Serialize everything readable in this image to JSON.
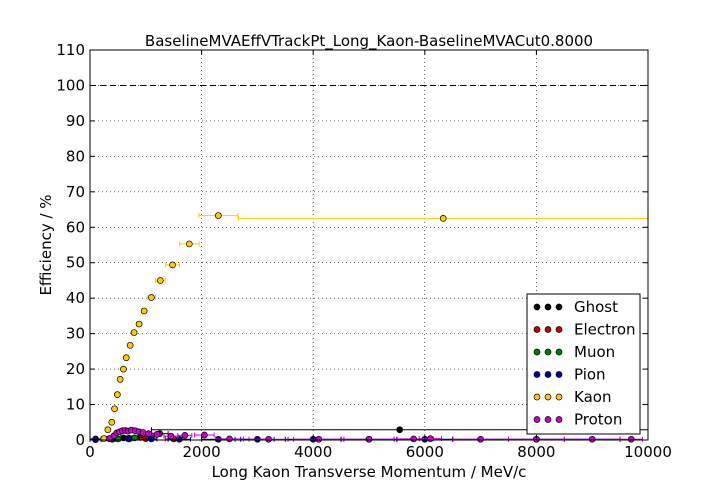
{
  "chart_data": {
    "type": "scatter",
    "title": "BaselineMVAEffVTrackPt_Long_Kaon-BaselineMVACut0.8000",
    "xlabel": "Long Kaon Transverse Momentum / MeV/c",
    "ylabel": "Efficiency / %",
    "xlim": [
      0,
      10000
    ],
    "ylim": [
      0,
      110
    ],
    "x_ticks": [
      "0",
      "2000",
      "4000",
      "6000",
      "8000",
      "10000"
    ],
    "y_ticks": [
      "0",
      "10",
      "20",
      "30",
      "40",
      "50",
      "60",
      "70",
      "80",
      "90",
      "100",
      "110"
    ],
    "grid": true,
    "reference_line": 100,
    "legend_position": "lower-right",
    "series": [
      {
        "name": "Ghost",
        "color": "#000000",
        "points": [
          {
            "x": 100,
            "y": 0.3,
            "xerr": 100
          },
          {
            "x": 350,
            "y": 0.4,
            "xerr": 50
          },
          {
            "x": 600,
            "y": 0.6,
            "xerr": 50
          },
          {
            "x": 900,
            "y": 0.8,
            "xerr": 100
          },
          {
            "x": 1250,
            "y": 1.8,
            "xerr": 150
          },
          {
            "x": 5550,
            "y": 2.9,
            "xerr": 4450
          }
        ]
      },
      {
        "name": "Electron",
        "color": "#cc0000",
        "points": [
          {
            "x": 400,
            "y": 0.3,
            "xerr": 50
          },
          {
            "x": 700,
            "y": 0.5,
            "xerr": 50
          },
          {
            "x": 1000,
            "y": 0.4,
            "xerr": 100
          },
          {
            "x": 1500,
            "y": 0.3,
            "xerr": 150
          }
        ]
      },
      {
        "name": "Muon",
        "color": "#008000",
        "points": [
          {
            "x": 500,
            "y": 0.3,
            "xerr": 50
          },
          {
            "x": 800,
            "y": 0.6,
            "xerr": 50
          },
          {
            "x": 1100,
            "y": 0.8,
            "xerr": 100
          }
        ]
      },
      {
        "name": "Pion",
        "color": "#000099",
        "points": [
          {
            "x": 100,
            "y": 0.1,
            "xerr": 100
          },
          {
            "x": 400,
            "y": 0.2,
            "xerr": 50
          },
          {
            "x": 700,
            "y": 0.3,
            "xerr": 50
          },
          {
            "x": 1100,
            "y": 0.3,
            "xerr": 100
          },
          {
            "x": 1600,
            "y": 0.2,
            "xerr": 200
          },
          {
            "x": 2300,
            "y": 0.2,
            "xerr": 300
          },
          {
            "x": 3000,
            "y": 0.2,
            "xerr": 300
          },
          {
            "x": 4000,
            "y": 0.2,
            "xerr": 500
          },
          {
            "x": 5000,
            "y": 0.2,
            "xerr": 500
          },
          {
            "x": 6000,
            "y": 0.2,
            "xerr": 500
          },
          {
            "x": 8000,
            "y": 0.2,
            "xerr": 1500
          }
        ]
      },
      {
        "name": "Kaon",
        "color": "#ffcc00",
        "points": [
          {
            "x": 250,
            "y": 0.4,
            "xerr": 25
          },
          {
            "x": 320,
            "y": 2.9,
            "xerr": 25
          },
          {
            "x": 390,
            "y": 5.0,
            "xerr": 25
          },
          {
            "x": 440,
            "y": 8.8,
            "xerr": 25
          },
          {
            "x": 490,
            "y": 12.8,
            "xerr": 25
          },
          {
            "x": 540,
            "y": 17.1,
            "xerr": 25
          },
          {
            "x": 600,
            "y": 20.0,
            "xerr": 25
          },
          {
            "x": 650,
            "y": 23.2,
            "xerr": 25
          },
          {
            "x": 720,
            "y": 26.7,
            "xerr": 35
          },
          {
            "x": 790,
            "y": 30.3,
            "xerr": 35
          },
          {
            "x": 880,
            "y": 32.7,
            "xerr": 45
          },
          {
            "x": 970,
            "y": 36.4,
            "xerr": 45
          },
          {
            "x": 1100,
            "y": 40.2,
            "xerr": 75
          },
          {
            "x": 1260,
            "y": 45.0,
            "xerr": 85
          },
          {
            "x": 1480,
            "y": 49.4,
            "xerr": 125
          },
          {
            "x": 1780,
            "y": 55.3,
            "xerr": 175
          },
          {
            "x": 2300,
            "y": 63.3,
            "xerr": 350
          },
          {
            "x": 6330,
            "y": 62.5,
            "xerr": 3670
          }
        ]
      },
      {
        "name": "Proton",
        "color": "#cc00cc",
        "points": [
          {
            "x": 350,
            "y": 0.4,
            "xerr": 25
          },
          {
            "x": 430,
            "y": 1.2,
            "xerr": 25
          },
          {
            "x": 480,
            "y": 2.0,
            "xerr": 25
          },
          {
            "x": 530,
            "y": 2.3,
            "xerr": 25
          },
          {
            "x": 580,
            "y": 2.6,
            "xerr": 25
          },
          {
            "x": 630,
            "y": 2.7,
            "xerr": 25
          },
          {
            "x": 680,
            "y": 2.5,
            "xerr": 25
          },
          {
            "x": 740,
            "y": 2.8,
            "xerr": 35
          },
          {
            "x": 810,
            "y": 2.6,
            "xerr": 35
          },
          {
            "x": 880,
            "y": 2.3,
            "xerr": 35
          },
          {
            "x": 950,
            "y": 2.1,
            "xerr": 35
          },
          {
            "x": 1050,
            "y": 1.8,
            "xerr": 50
          },
          {
            "x": 1200,
            "y": 1.6,
            "xerr": 75
          },
          {
            "x": 1450,
            "y": 1.1,
            "xerr": 125
          },
          {
            "x": 1700,
            "y": 1.3,
            "xerr": 125
          },
          {
            "x": 2050,
            "y": 1.4,
            "xerr": 175
          },
          {
            "x": 2500,
            "y": 0.3,
            "xerr": 250
          },
          {
            "x": 3200,
            "y": 0.2,
            "xerr": 350
          },
          {
            "x": 4100,
            "y": 0.2,
            "xerr": 450
          },
          {
            "x": 5000,
            "y": 0.2,
            "xerr": 450
          },
          {
            "x": 5800,
            "y": 0.3,
            "xerr": 350
          },
          {
            "x": 6100,
            "y": 0.4,
            "xerr": 200
          },
          {
            "x": 7000,
            "y": 0.2,
            "xerr": 500
          },
          {
            "x": 8000,
            "y": 0.2,
            "xerr": 500
          },
          {
            "x": 9000,
            "y": 0.2,
            "xerr": 500
          },
          {
            "x": 9700,
            "y": 0.2,
            "xerr": 200
          }
        ]
      }
    ]
  }
}
